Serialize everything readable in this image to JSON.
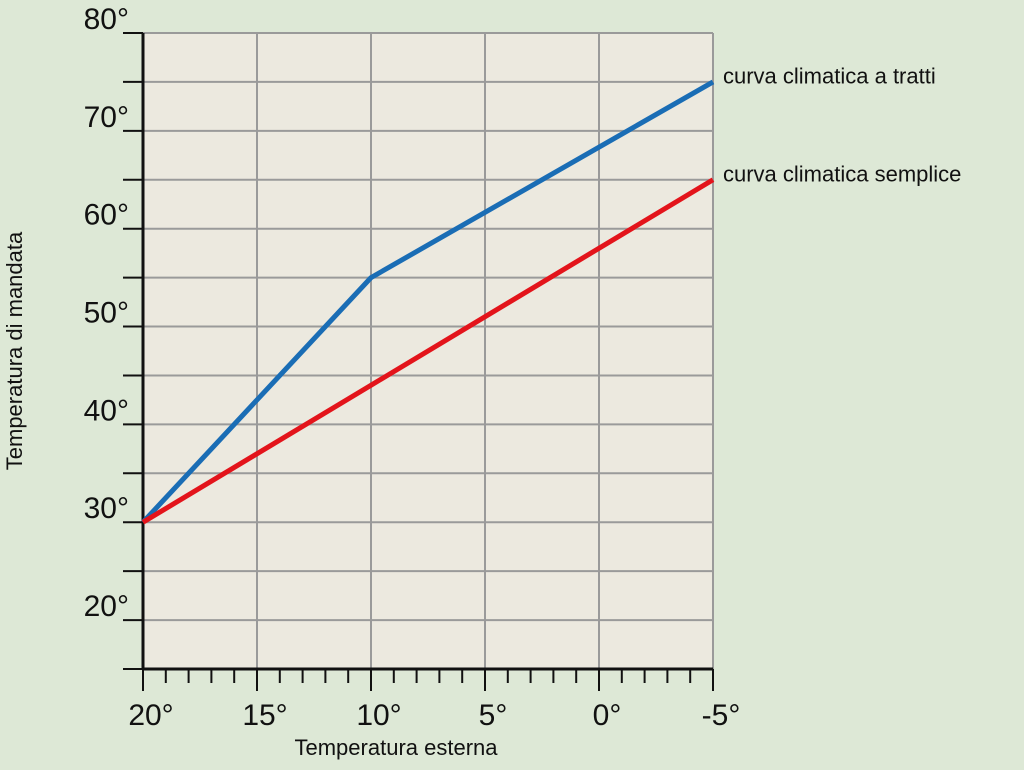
{
  "chart_data": {
    "type": "line",
    "x_label": "Temperatura esterna",
    "y_label": "Temperatura di mandata",
    "x": [
      20,
      10,
      -5
    ],
    "series": [
      {
        "name": "curva climatica a tratti",
        "color": "#1a6db5",
        "values": [
          30,
          55,
          75
        ]
      },
      {
        "name": "curva climatica semplice",
        "color": "#e3141b",
        "values": [
          30,
          44,
          65
        ]
      }
    ],
    "xlim": [
      20,
      -5
    ],
    "ylim": [
      15,
      80
    ],
    "xticks": [
      {
        "value": 20,
        "label": "20°"
      },
      {
        "value": 15,
        "label": "15°"
      },
      {
        "value": 10,
        "label": "10°"
      },
      {
        "value": 5,
        "label": "5°"
      },
      {
        "value": 0,
        "label": "0°"
      },
      {
        "value": -5,
        "label": "-5°"
      }
    ],
    "x_minor_ticks": [
      19,
      18,
      17,
      16,
      14,
      13,
      12,
      11,
      9,
      8,
      7,
      6,
      4,
      3,
      2,
      1,
      -1,
      -2,
      -3,
      -4
    ],
    "yticks": [
      {
        "value": 20,
        "label": "20°"
      },
      {
        "value": 30,
        "label": "30°"
      },
      {
        "value": 40,
        "label": "40°"
      },
      {
        "value": 50,
        "label": "50°"
      },
      {
        "value": 60,
        "label": "60°"
      },
      {
        "value": 70,
        "label": "70°"
      },
      {
        "value": 80,
        "label": "80°"
      }
    ],
    "y_minor_ticks": [
      15,
      25,
      35,
      45,
      55,
      65,
      75
    ],
    "grid": true
  }
}
